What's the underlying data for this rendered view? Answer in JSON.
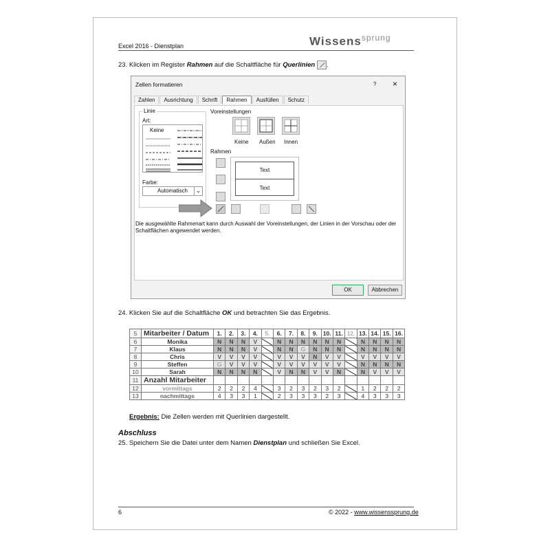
{
  "header": {
    "title": "Excel 2016 - Dienstplan",
    "logo": "Wissenssprung"
  },
  "step23": {
    "pre": "23. Klicken im Register ",
    "bold1": "Rahmen",
    "mid": " auf die Schaltfläche für ",
    "bold2": "Querlinien",
    "post": "."
  },
  "dialog": {
    "title": "Zellen formatieren",
    "help": "?",
    "close": "×",
    "tabs": [
      "Zahlen",
      "Ausrichtung",
      "Schrift",
      "Rahmen",
      "Ausfüllen",
      "Schutz"
    ],
    "selected_tab": "Rahmen",
    "linie": "Linie",
    "art": "Art:",
    "keine_style": "Keine",
    "farbe": "Farbe:",
    "farbe_value": "Automatisch",
    "voreinstellungen": "Voreinstellungen",
    "presets": [
      "Keine",
      "Außen",
      "Innen"
    ],
    "rahmen": "Rahmen",
    "preview_text": [
      "Text",
      "Text"
    ],
    "info": "Die ausgewählte Rahmenart kann durch Auswahl der Voreinstellungen, der Linien in der Vorschau oder der Schaltflächen angewendet werden.",
    "ok": "OK",
    "cancel": "Abbrechen"
  },
  "step24": {
    "pre": "24. Klicken Sie auf die Schaltfläche ",
    "bold": "OK",
    "post": " und betrachten Sie das Ergebnis."
  },
  "table": {
    "header": {
      "row": "5",
      "label": "Mitarbeiter / Datum",
      "days": [
        "1.",
        "2.",
        "3.",
        "4.",
        "5.",
        "6.",
        "7.",
        "8.",
        "9.",
        "10.",
        "11.",
        "12.",
        "13.",
        "14.",
        "15.",
        "16."
      ]
    },
    "employees": [
      {
        "row": "6",
        "name": "Monika",
        "values": [
          "N",
          "N",
          "N",
          "V",
          null,
          "N",
          "N",
          "N",
          "N",
          "N",
          "N",
          null,
          "N",
          "N",
          "N",
          "N"
        ]
      },
      {
        "row": "7",
        "name": "Klaus",
        "values": [
          "N",
          "N",
          "N",
          "V",
          null,
          "N",
          "N",
          "G",
          "N",
          "N",
          "N",
          null,
          "N",
          "N",
          "N",
          "N"
        ]
      },
      {
        "row": "8",
        "name": "Chris",
        "values": [
          "V",
          "V",
          "V",
          "V",
          null,
          "V",
          "V",
          "V",
          "N",
          "V",
          "V",
          null,
          "V",
          "V",
          "V",
          "V"
        ]
      },
      {
        "row": "9",
        "name": "Steffen",
        "values": [
          "G",
          "V",
          "V",
          "V",
          null,
          "V",
          "V",
          "V",
          "V",
          "V",
          "V",
          null,
          "N",
          "N",
          "N",
          "N"
        ]
      },
      {
        "row": "10",
        "name": "Sarah",
        "values": [
          "N",
          "N",
          "N",
          "N",
          null,
          "V",
          "N",
          "N",
          "V",
          "V",
          "N",
          null,
          "N",
          "V",
          "V",
          "V"
        ]
      }
    ],
    "count_header": {
      "row": "11",
      "label": "Anzahl Mitarbeiter"
    },
    "counts": [
      {
        "row": "12",
        "name": "vormittags",
        "values": [
          "2",
          "2",
          "2",
          "4",
          null,
          "3",
          "2",
          "3",
          "2",
          "3",
          "2",
          null,
          "1",
          "2",
          "2",
          "2"
        ]
      },
      {
        "row": "13",
        "name": "nachmittags",
        "values": [
          "4",
          "3",
          "3",
          "1",
          null,
          "2",
          "3",
          "3",
          "3",
          "2",
          "3",
          null,
          "4",
          "3",
          "3",
          "3"
        ]
      }
    ]
  },
  "ergebnis": {
    "label": "Ergebnis:",
    "text": " Die Zellen werden mit Querlinien dargestellt."
  },
  "abschluss": {
    "heading": "Abschluss",
    "pre": "25. Speichern Sie die Datei unter dem Namen ",
    "bold": "Dienstplan",
    "post": " und schließen Sie Excel."
  },
  "footer": {
    "page": "6",
    "copyright": "© 2022 - ",
    "link": "www.wissenssprung.de"
  }
}
